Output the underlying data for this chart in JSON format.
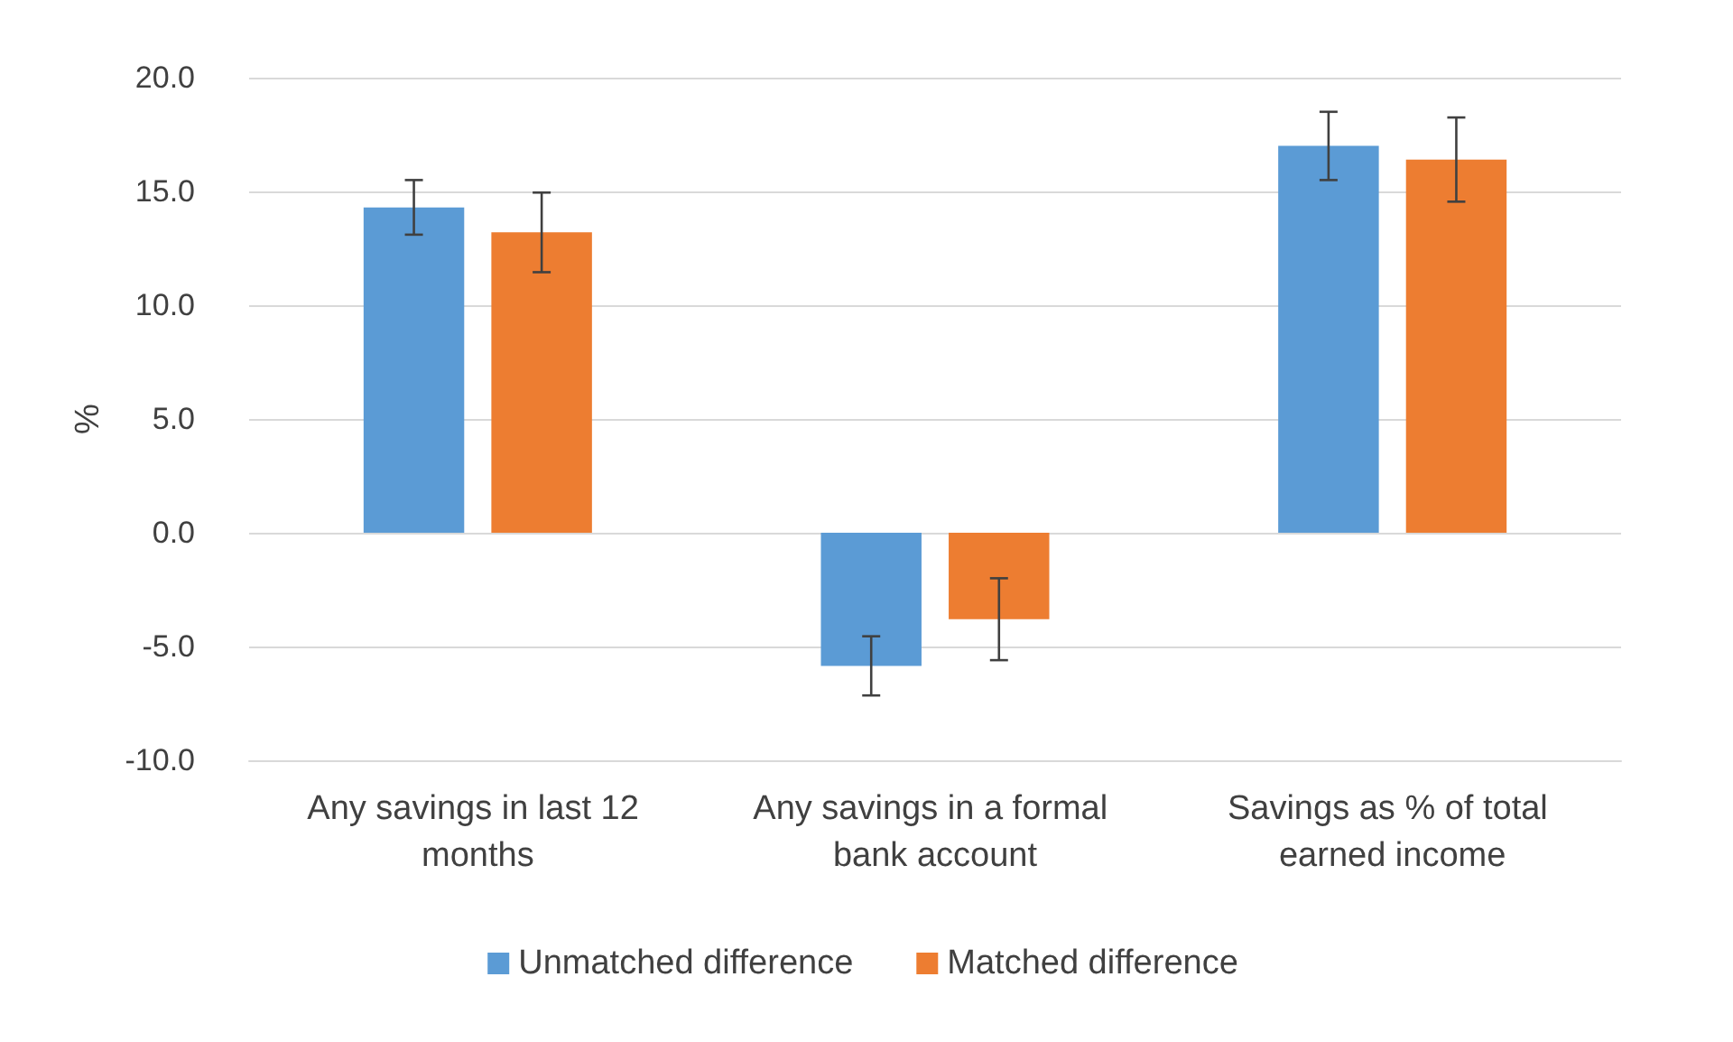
{
  "chart_data": {
    "type": "bar",
    "ylabel": "%",
    "categories": [
      "Any savings in last 12 months",
      "Any savings in a formal bank account",
      "Savings as % of total earned income"
    ],
    "series": [
      {
        "name": "Unmatched difference",
        "color": "#5b9bd5",
        "values": [
          14.3,
          -5.85,
          17.0
        ],
        "errors": [
          1.2,
          1.3,
          1.5
        ]
      },
      {
        "name": "Matched difference",
        "color": "#ed7d31",
        "values": [
          13.2,
          -3.8,
          16.4
        ],
        "errors": [
          1.75,
          1.8,
          1.85
        ]
      }
    ],
    "ylim": [
      -10,
      20
    ],
    "yticks": [
      {
        "value": -10,
        "label": "-10.0"
      },
      {
        "value": -5,
        "label": "-5.0"
      },
      {
        "value": 0,
        "label": "0.0"
      },
      {
        "value": 5,
        "label": "5.0"
      },
      {
        "value": 10,
        "label": "10.0"
      },
      {
        "value": 15,
        "label": "15.0"
      },
      {
        "value": 20,
        "label": "20.0"
      }
    ],
    "grid": "y",
    "legend": "bottom"
  }
}
